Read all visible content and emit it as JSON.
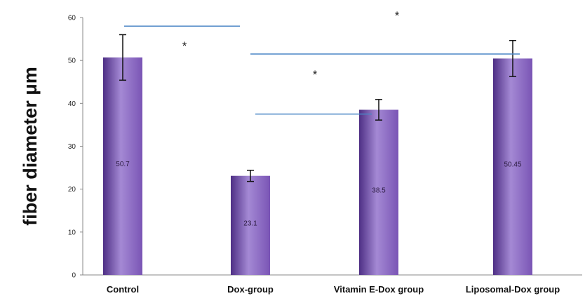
{
  "chart_data": {
    "type": "bar",
    "title": "",
    "xlabel": "",
    "ylabel": "fiber diameter μm",
    "ylim": [
      0,
      60
    ],
    "yticks": [
      0,
      10,
      20,
      30,
      40,
      50,
      60
    ],
    "grid": false,
    "categories": [
      "Control",
      "Dox-group",
      "Vitamin E-Dox group",
      "Liposomal-Dox group"
    ],
    "values": [
      50.7,
      23.1,
      38.5,
      50.45
    ],
    "value_labels": [
      "50.7",
      "23.1",
      "38.5",
      "50.45"
    ],
    "errors": [
      5.3,
      1.3,
      2.4,
      4.2
    ],
    "bar_color": "#7a55b5",
    "bar_color_dark": "#4e2f85",
    "bar_color_light": "#a489d4",
    "significance_line_color": "#4a86c5",
    "significance": [
      {
        "from": 0,
        "to": 1,
        "level": 58,
        "star": "*"
      },
      {
        "from": 1,
        "to": 3,
        "level": 51.5,
        "star": "*"
      },
      {
        "from": 1,
        "to": 2,
        "level": 37.5,
        "star": "*"
      }
    ]
  }
}
